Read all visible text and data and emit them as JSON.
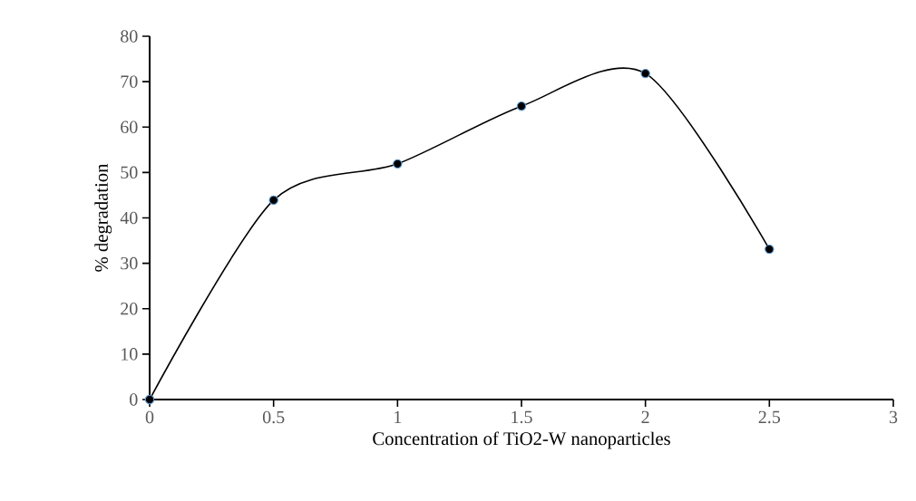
{
  "chart_data": {
    "type": "line",
    "xlabel": "Concentration of TiO2-W nanoparticles",
    "ylabel": "% degradation",
    "x": [
      0,
      0.5,
      1,
      1.5,
      2,
      2.5
    ],
    "values": [
      0,
      43.9,
      51.9,
      64.6,
      71.8,
      33.1
    ],
    "color": "#000000",
    "marker": "circle",
    "line_style": "solid",
    "xlim": [
      0,
      3
    ],
    "ylim": [
      0,
      80
    ],
    "xticks": [
      0,
      0.5,
      1,
      1.5,
      2,
      2.5,
      3
    ],
    "yticks": [
      0,
      10,
      20,
      30,
      40,
      50,
      60,
      70,
      80
    ]
  }
}
